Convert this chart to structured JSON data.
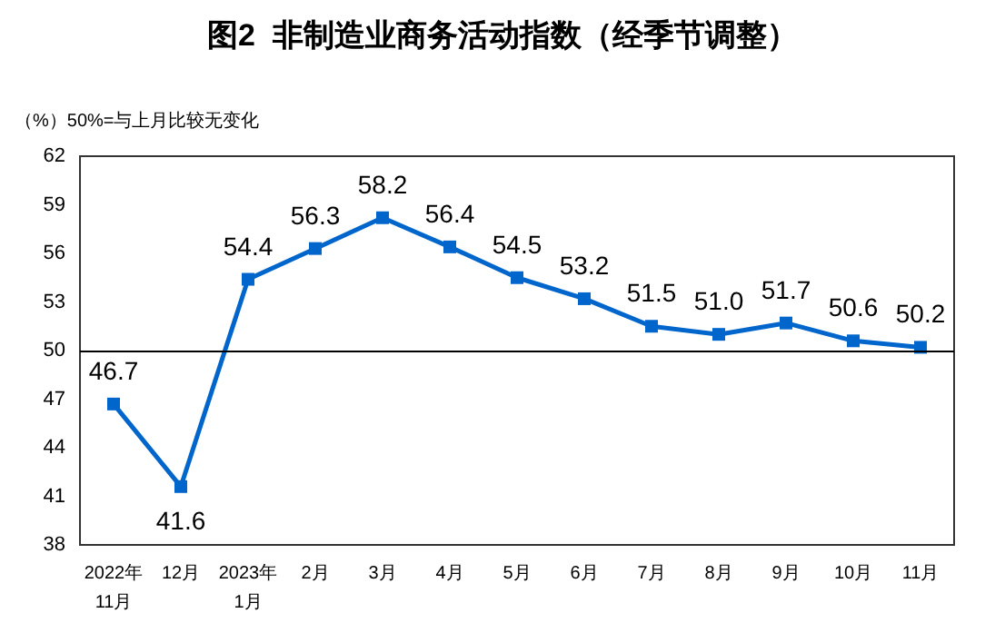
{
  "chart_data": {
    "type": "line",
    "title": "图2  非制造业商务活动指数（经季节调整）",
    "ylabel": "（%）",
    "annotations": [
      "50%=与上月比较无变化"
    ],
    "categories": [
      "2022年\n11月",
      "12月",
      "2023年\n1月",
      "2月",
      "3月",
      "4月",
      "5月",
      "6月",
      "7月",
      "8月",
      "9月",
      "10月",
      "11月"
    ],
    "series": [
      {
        "color": "#0066cc",
        "values": [
          46.7,
          41.6,
          54.4,
          56.3,
          58.2,
          56.4,
          54.5,
          53.2,
          51.5,
          51.0,
          51.7,
          50.6,
          50.2
        ]
      }
    ],
    "ylim": [
      38,
      62
    ],
    "yticks": [
      38,
      41,
      44,
      47,
      50,
      53,
      56,
      59,
      62
    ],
    "marker": "square",
    "grid": false,
    "value_labels": [
      "46.7",
      "41.6",
      "54.4",
      "56.3",
      "58.2",
      "56.4",
      "54.5",
      "53.2",
      "51.5",
      "51.0",
      "51.7",
      "50.6",
      "50.2"
    ],
    "ref_lines": [
      {
        "axis": "y",
        "value": 50,
        "label": null,
        "color": "#000000"
      }
    ]
  }
}
